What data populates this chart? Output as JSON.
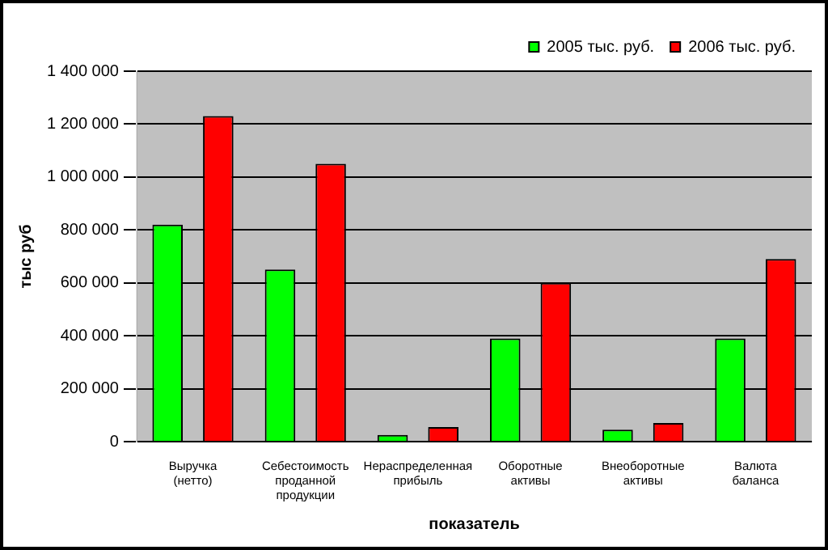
{
  "chart_data": {
    "type": "bar",
    "xlabel": "показатель",
    "ylabel": "тыс руб",
    "categories": [
      "Выручка (нетто)",
      "Себестоимость проданной продукции",
      "Нераспределенная прибыль",
      "Оборотные активы",
      "Внеоборотные активы",
      "Валюта баланса"
    ],
    "series": [
      {
        "name": "2005 тыс. руб.",
        "color": "#00ff00",
        "values": [
          820000,
          650000,
          25000,
          390000,
          45000,
          390000
        ]
      },
      {
        "name": "2006 тыс. руб.",
        "color": "#ff0000",
        "values": [
          1230000,
          1050000,
          55000,
          600000,
          70000,
          690000
        ]
      }
    ],
    "ylim": [
      0,
      1400000
    ],
    "yticks": [
      {
        "value": 0,
        "label": "0"
      },
      {
        "value": 200000,
        "label": "200 000"
      },
      {
        "value": 400000,
        "label": "400 000"
      },
      {
        "value": 600000,
        "label": "600 000"
      },
      {
        "value": 800000,
        "label": "800 000"
      },
      {
        "value": 1000000,
        "label": "1 000 000"
      },
      {
        "value": 1200000,
        "label": "1 200 000"
      },
      {
        "value": 1400000,
        "label": "1 400 000"
      }
    ],
    "grid": "y",
    "legend": "top right"
  }
}
